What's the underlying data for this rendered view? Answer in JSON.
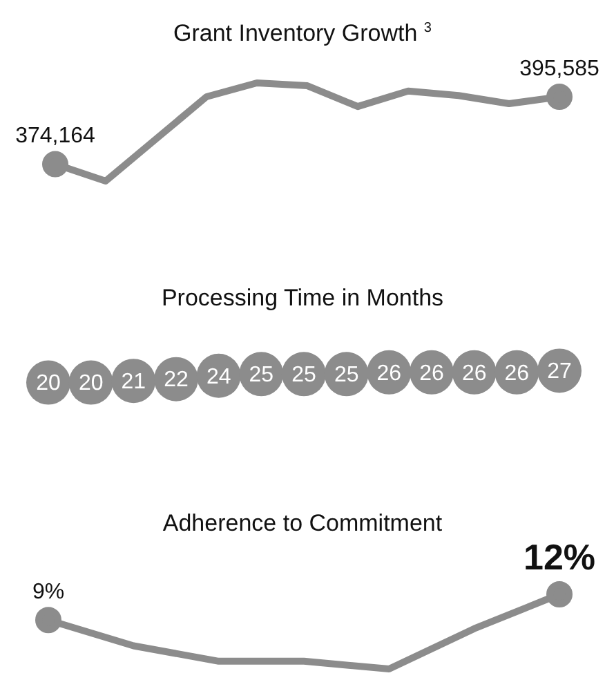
{
  "chart_data": [
    {
      "type": "line",
      "title": "Grant Inventory Growth $^{3}$",
      "categories": [
        null,
        null,
        null,
        null,
        null,
        null,
        null,
        null,
        null,
        null,
        null
      ],
      "values": [
        374164,
        368800,
        382200,
        395600,
        400000,
        399100,
        392500,
        397400,
        396000,
        393400,
        395585
      ],
      "value_labels": [
        "374,164",
        null,
        null,
        null,
        null,
        null,
        null,
        null,
        null,
        null,
        "395,585"
      ],
      "color": "#8c8c8c",
      "tick_labels": false
    },
    {
      "type": "other",
      "title": "Processing Time in Months",
      "categories": [
        null,
        null,
        null,
        null,
        null,
        null,
        null,
        null,
        null,
        null,
        null,
        null,
        null
      ],
      "values": [
        20,
        20,
        21,
        22,
        24,
        25,
        25,
        25,
        26,
        26,
        26,
        26,
        27
      ],
      "color": "#8c8c8c",
      "data_labels": true
    },
    {
      "type": "line",
      "title": "Adherence to Commitment",
      "categories": [
        null,
        null,
        null,
        null,
        null,
        null,
        null
      ],
      "values": [
        9,
        6,
        4.2,
        4.2,
        3.3,
        8,
        12
      ],
      "value_labels": [
        "9%",
        null,
        null,
        null,
        null,
        null,
        "12%"
      ],
      "color": "#8c8c8c",
      "tick_labels": false
    }
  ]
}
